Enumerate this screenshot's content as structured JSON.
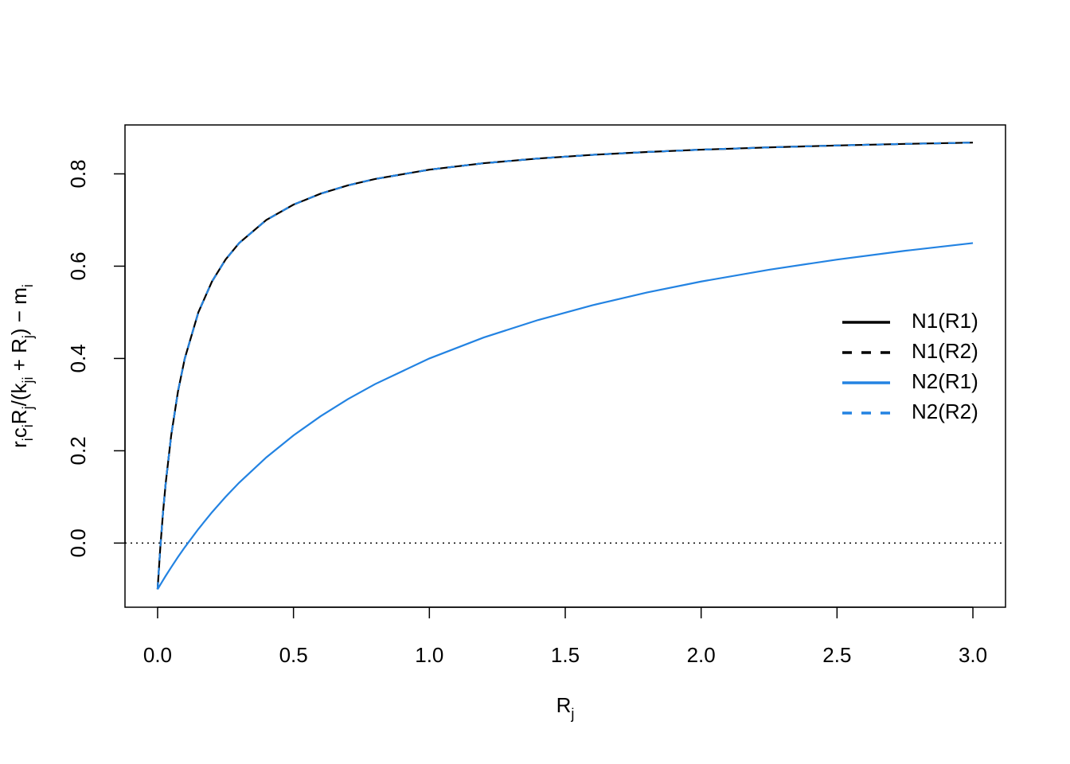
{
  "chart_data": {
    "type": "line",
    "xlabel": [
      [
        "R",
        "j"
      ]
    ],
    "ylabel": [
      [
        "r",
        "i"
      ],
      [
        "c",
        "i"
      ],
      [
        "R",
        "j"
      ],
      [
        "/(k",
        "ji"
      ],
      [
        " + R",
        "j"
      ],
      [
        ") − m",
        "i"
      ]
    ],
    "x": [
      0,
      0.01,
      0.02,
      0.03,
      0.05,
      0.075,
      0.1,
      0.15,
      0.2,
      0.25,
      0.3,
      0.4,
      0.5,
      0.6,
      0.7,
      0.8,
      1.0,
      1.2,
      1.4,
      1.6,
      1.8,
      2.0,
      2.25,
      2.5,
      2.75,
      3.0
    ],
    "series": [
      {
        "name": "N1(R1)",
        "color": "#000000",
        "dash": false,
        "values": [
          -0.1,
          -0.009,
          0.0667,
          0.1308,
          0.2333,
          0.3286,
          0.4,
          0.5,
          0.5667,
          0.6143,
          0.65,
          0.7,
          0.7333,
          0.7571,
          0.775,
          0.7889,
          0.8091,
          0.8231,
          0.8333,
          0.8412,
          0.8474,
          0.8524,
          0.8574,
          0.8615,
          0.8649,
          0.8677
        ]
      },
      {
        "name": "N1(R2)",
        "color": "#000000",
        "dash": true,
        "values": [
          -0.1,
          -0.009,
          0.0667,
          0.1308,
          0.2333,
          0.3286,
          0.4,
          0.5,
          0.5667,
          0.6143,
          0.65,
          0.7,
          0.7333,
          0.7571,
          0.775,
          0.7889,
          0.8091,
          0.8231,
          0.8333,
          0.8412,
          0.8474,
          0.8524,
          0.8574,
          0.8615,
          0.8649,
          0.8677
        ]
      },
      {
        "name": "N2(R1)",
        "color": "#2383e2",
        "dash": false,
        "values": [
          -0.1,
          -0.0901,
          -0.0804,
          -0.0709,
          -0.0524,
          -0.0302,
          -0.0091,
          0.0304,
          0.0667,
          0.1,
          0.1308,
          0.1857,
          0.2333,
          0.275,
          0.3118,
          0.3444,
          0.4,
          0.4455,
          0.4833,
          0.5154,
          0.5429,
          0.5667,
          0.5923,
          0.6143,
          0.6333,
          0.65
        ]
      },
      {
        "name": "N2(R2)",
        "color": "#2383e2",
        "dash": true,
        "values": [
          -0.1,
          -0.009,
          0.0667,
          0.1308,
          0.2333,
          0.3286,
          0.4,
          0.5,
          0.5667,
          0.6143,
          0.65,
          0.7,
          0.7333,
          0.7571,
          0.775,
          0.7889,
          0.8091,
          0.8231,
          0.8333,
          0.8412,
          0.8474,
          0.8524,
          0.8574,
          0.8615,
          0.8649,
          0.8677
        ]
      }
    ],
    "reference_line": 0,
    "xlim": [
      -0.12,
      3.12
    ],
    "ylim": [
      -0.139,
      0.906
    ],
    "xticks": [
      {
        "value": 0,
        "label": "0.0"
      },
      0.5,
      {
        "value": 1,
        "label": "1.0"
      },
      1.5,
      {
        "value": 2,
        "label": "2.0"
      },
      2.5,
      {
        "value": 3,
        "label": "3.0"
      }
    ],
    "yticks": [
      {
        "value": 0,
        "label": "0.0"
      },
      0.2,
      0.4,
      0.6,
      0.8
    ],
    "legend": "right"
  }
}
